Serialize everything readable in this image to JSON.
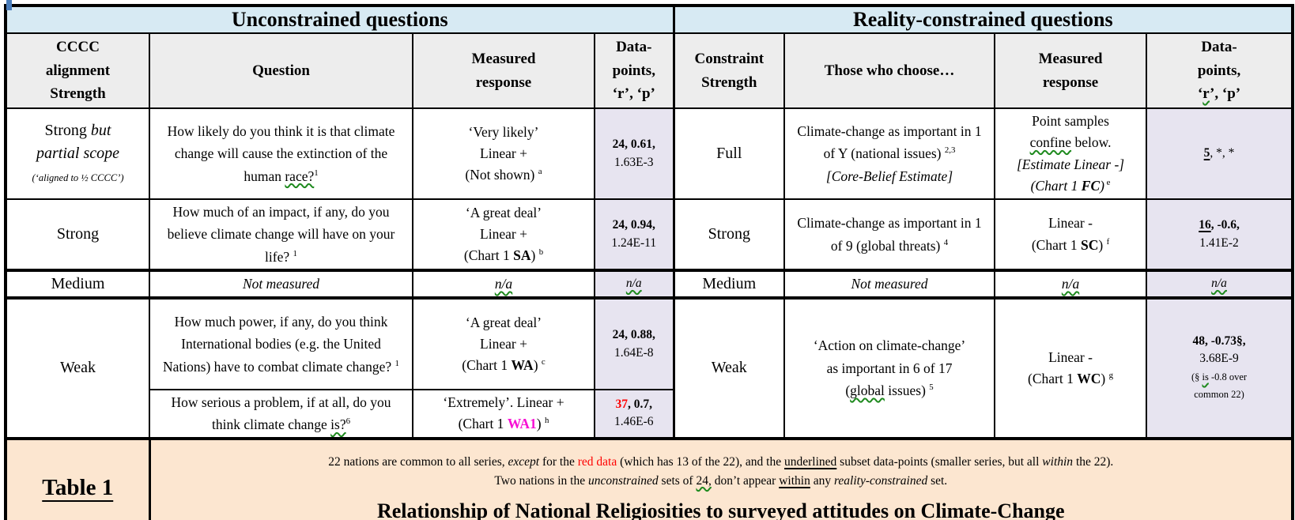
{
  "colors": {
    "band_blue": "#d7eaf3",
    "header_gray": "#ededed",
    "lavender": "#e7e4f0",
    "peach": "#fce6d0",
    "red": "#fe0000",
    "magenta": "#f70fd4",
    "green": "#1e8a1e",
    "cursor_blue": "#4a7ebd"
  },
  "band": {
    "left": "Unconstrained questions",
    "right": "Reality-constrained questions"
  },
  "head": {
    "cccc": [
      {
        "t": "CCCC"
      },
      {
        "br": true
      },
      {
        "t": "alignment"
      },
      {
        "br": true
      },
      {
        "t": "Strength"
      }
    ],
    "question": [
      {
        "t": "Question"
      }
    ],
    "measured": [
      {
        "t": "Measured"
      },
      {
        "br": true
      },
      {
        "t": "response"
      }
    ],
    "datapoints": [
      {
        "t": "Data-"
      },
      {
        "br": true
      },
      {
        "t": "points,"
      },
      {
        "br": true
      },
      {
        "t": "‘r’, ‘p’"
      }
    ],
    "constraint": [
      {
        "t": "Constraint"
      },
      {
        "br": true
      },
      {
        "t": "Strength"
      }
    ],
    "those": [
      {
        "t": "Those who choose…"
      }
    ],
    "measured_r": [
      {
        "t": "Measured"
      },
      {
        "br": true
      },
      {
        "t": "response"
      }
    ],
    "datapoints_r": [
      {
        "t": "Data-"
      },
      {
        "br": true
      },
      {
        "t": "points,"
      },
      {
        "br": true
      },
      {
        "t": "‘"
      },
      {
        "t": "r",
        "c": "sq"
      },
      {
        "t": "’, ‘p’"
      }
    ]
  },
  "cells": {
    "r1": {
      "align": [
        {
          "t": "Strong "
        },
        {
          "t": "but",
          "c": "i"
        },
        {
          "br": true
        },
        {
          "t": "partial scope",
          "c": "i"
        },
        {
          "br": true
        },
        {
          "t": "(‘aligned to ½ CCCC’)",
          "c": "sm i"
        }
      ],
      "question": [
        {
          "t": "How likely do you think it is that climate change will cause the extinction of the human "
        },
        {
          "t": "race?",
          "c": "sq"
        },
        {
          "t": "1",
          "c": "sup"
        }
      ],
      "measured": [
        {
          "t": "‘Very likely’"
        },
        {
          "br": true
        },
        {
          "t": "Linear +"
        },
        {
          "br": true
        },
        {
          "t": "(Not shown) "
        },
        {
          "t": "a",
          "c": "sup"
        }
      ],
      "data": [
        {
          "t": "24, 0.61,",
          "c": "b"
        },
        {
          "br": true
        },
        {
          "t": "1.63E-3"
        }
      ],
      "constraint": [
        {
          "t": "Full"
        }
      ],
      "those": [
        {
          "t": "Climate-change as important in 1 of Y (national issues) "
        },
        {
          "t": "2,3",
          "c": "sup"
        },
        {
          "br": true
        },
        {
          "t": "[Core-Belief Estimate]",
          "c": "i"
        }
      ],
      "measured_r": [
        {
          "t": "Point samples"
        },
        {
          "br": true
        },
        {
          "t": "confine",
          "c": "sq"
        },
        {
          "t": " below."
        },
        {
          "br": true
        },
        {
          "t": "[Estimate Linear -]",
          "c": "i"
        },
        {
          "br": true
        },
        {
          "t": "(Chart 1 ",
          "c": "i"
        },
        {
          "t": "FC",
          "c": "bi"
        },
        {
          "t": ")",
          "c": "i"
        },
        {
          "t": " e",
          "c": "sup"
        }
      ],
      "data_r": [
        {
          "t": "5",
          "c": "b u"
        },
        {
          "t": ", *, *"
        }
      ]
    },
    "r2": {
      "align": [
        {
          "t": "Strong"
        }
      ],
      "question": [
        {
          "t": "How much of an impact, if any, do you believe climate change will have on your life? "
        },
        {
          "t": "1",
          "c": "sup"
        }
      ],
      "measured": [
        {
          "t": "‘A great deal’"
        },
        {
          "br": true
        },
        {
          "t": "Linear +"
        },
        {
          "br": true
        },
        {
          "t": "(Chart 1 "
        },
        {
          "t": "SA",
          "c": "b"
        },
        {
          "t": ") "
        },
        {
          "t": "b",
          "c": "sup"
        }
      ],
      "data": [
        {
          "t": "24, 0.94,",
          "c": "b"
        },
        {
          "br": true
        },
        {
          "t": "1.24E-11"
        }
      ],
      "constraint": [
        {
          "t": "Strong"
        }
      ],
      "those": [
        {
          "t": "Climate-change as important in 1 of 9 (global threats) "
        },
        {
          "t": "4",
          "c": "sup"
        }
      ],
      "measured_r": [
        {
          "t": "Linear -"
        },
        {
          "br": true
        },
        {
          "t": "(Chart 1 "
        },
        {
          "t": "SC",
          "c": "b"
        },
        {
          "t": ") "
        },
        {
          "t": "f",
          "c": "sup"
        }
      ],
      "data_r": [
        {
          "t": "16",
          "c": "b u"
        },
        {
          "t": ", -0.6,",
          "c": "b"
        },
        {
          "br": true
        },
        {
          "t": "1.41E-2"
        }
      ]
    },
    "r3": {
      "align": [
        {
          "t": "Medium"
        }
      ],
      "question": [
        {
          "t": "Not measured",
          "c": "i"
        }
      ],
      "measured": [
        {
          "t": "n/a",
          "c": "i sq"
        }
      ],
      "data": [
        {
          "t": "n/a",
          "c": "i sq"
        }
      ],
      "constraint": [
        {
          "t": "Medium"
        }
      ],
      "those": [
        {
          "t": "Not measured",
          "c": "i"
        }
      ],
      "measured_r": [
        {
          "t": "n/a",
          "c": "i sq"
        }
      ],
      "data_r": [
        {
          "t": "n/a",
          "c": "i sq"
        }
      ]
    },
    "r4": {
      "align": [
        {
          "t": "Weak"
        }
      ],
      "question_a": [
        {
          "t": "How much power, if any, do you think International bodies (e.g. the United Nations) have to combat climate change? "
        },
        {
          "t": "1",
          "c": "sup"
        }
      ],
      "measured_a": [
        {
          "t": "‘A great deal’"
        },
        {
          "br": true
        },
        {
          "t": "Linear +"
        },
        {
          "br": true
        },
        {
          "t": "(Chart 1 "
        },
        {
          "t": "WA",
          "c": "b"
        },
        {
          "t": ") "
        },
        {
          "t": "c",
          "c": "sup"
        }
      ],
      "data_a": [
        {
          "t": "24, 0.88,",
          "c": "b"
        },
        {
          "br": true
        },
        {
          "t": "1.64E-8"
        }
      ],
      "question_b": [
        {
          "t": "How serious a problem, if at all, do you think climate change "
        },
        {
          "t": "is?",
          "c": "sq"
        },
        {
          "t": "6",
          "c": "sup"
        }
      ],
      "measured_b": [
        {
          "t": "‘Extremely’. Linear +"
        },
        {
          "br": true
        },
        {
          "t": "(Chart 1 "
        },
        {
          "t": "WA1",
          "c": "b mag"
        },
        {
          "t": ") "
        },
        {
          "t": "h",
          "c": "sup"
        }
      ],
      "data_b": [
        {
          "t": "37",
          "c": "b red"
        },
        {
          "t": ", 0.7,",
          "c": "b"
        },
        {
          "br": true
        },
        {
          "t": "1.46E-6"
        }
      ],
      "constraint": [
        {
          "t": "Weak"
        }
      ],
      "those": [
        {
          "t": "‘Action on climate-change’"
        },
        {
          "br": true
        },
        {
          "t": "as important in 6 of 17"
        },
        {
          "br": true
        },
        {
          "t": "("
        },
        {
          "t": "global",
          "c": "sq"
        },
        {
          "t": " issues) "
        },
        {
          "t": "5",
          "c": "sup"
        }
      ],
      "measured_r": [
        {
          "t": "Linear -"
        },
        {
          "br": true
        },
        {
          "t": "(Chart 1 "
        },
        {
          "t": "WC",
          "c": "b"
        },
        {
          "t": ") "
        },
        {
          "t": "g",
          "c": "sup"
        }
      ],
      "data_r": [
        {
          "t": "48, -0.73§,",
          "c": "b"
        },
        {
          "br": true
        },
        {
          "t": "3.68E-9"
        },
        {
          "br": true
        },
        {
          "t": "(§ ",
          "c": "sm2"
        },
        {
          "t": "is",
          "c": "sm2 sq"
        },
        {
          "t": " -0.8 over",
          "c": "sm2"
        },
        {
          "br": true
        },
        {
          "t": "common 22)",
          "c": "sm2"
        }
      ]
    },
    "bottom": {
      "label": "Table 1",
      "note1": [
        {
          "t": "22 nations are common to all series, "
        },
        {
          "t": "except",
          "c": "i"
        },
        {
          "t": " for the "
        },
        {
          "t": "red data",
          "c": "red"
        },
        {
          "t": " (which has 13 of the 22), and the "
        },
        {
          "t": "underlined",
          "c": "u"
        },
        {
          "t": " subset data-points (smaller series, but all "
        },
        {
          "t": "within",
          "c": "i"
        },
        {
          "t": " the 22)."
        }
      ],
      "note2": [
        {
          "t": "Two nations in the "
        },
        {
          "t": "unconstrained",
          "c": "i"
        },
        {
          "t": " sets of "
        },
        {
          "t": "24,",
          "c": "sq"
        },
        {
          "t": " don’t appear "
        },
        {
          "t": "within",
          "c": "u"
        },
        {
          "t": " any "
        },
        {
          "t": "reality-constrained",
          "c": "i"
        },
        {
          "t": " set."
        }
      ],
      "title": "Relationship of National Religiosities to surveyed attitudes on Climate-Change"
    }
  }
}
